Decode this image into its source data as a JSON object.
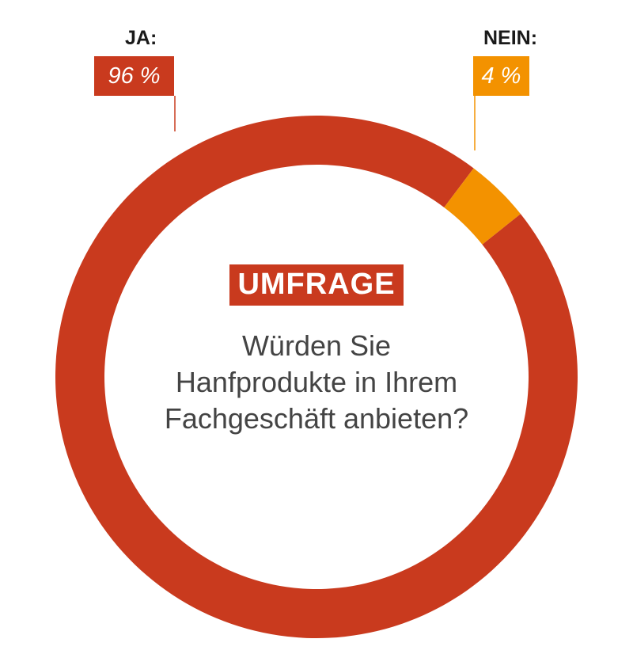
{
  "chart_data": {
    "type": "pie",
    "donut": true,
    "categories": [
      "JA:",
      "NEIN:"
    ],
    "values": [
      96,
      4
    ],
    "value_labels": [
      "96 %",
      "4 %"
    ],
    "colors": [
      "#c93a1e",
      "#f39200"
    ],
    "badge": "UMFRAGE",
    "question_lines": [
      "Würden Sie",
      "Hanfprodukte in Ihrem",
      "Fachgeschäft anbieten?"
    ]
  },
  "colors": {
    "primary": "#c93a1e",
    "secondary": "#f39200",
    "text": "#444444"
  }
}
